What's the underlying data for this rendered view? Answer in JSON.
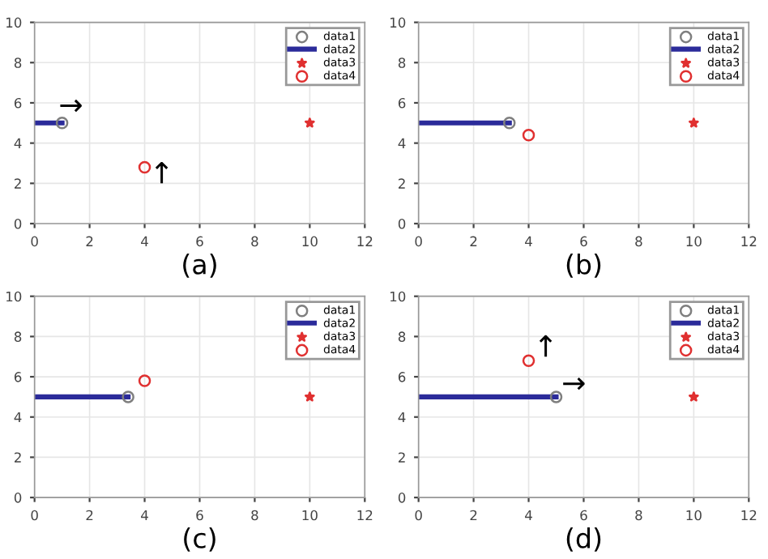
{
  "chart_data": [
    {
      "type": "line",
      "xlabel": "(a)",
      "xlim": [
        0,
        12
      ],
      "ylim": [
        0,
        10
      ],
      "xticks": [
        0,
        2,
        4,
        6,
        8,
        10,
        12
      ],
      "yticks": [
        0,
        2,
        4,
        6,
        8,
        10
      ],
      "grid": true,
      "legend": "top right",
      "annotations": [
        "→",
        "↑"
      ],
      "series": [
        {
          "name": "data1",
          "type": "scatter",
          "marker": "circle",
          "color": "#7f7f7f",
          "x": [
            1.0
          ],
          "values": [
            5
          ]
        },
        {
          "name": "data2",
          "color": "#2b2b9a",
          "x": [
            0,
            1.0
          ],
          "values": [
            5,
            5
          ]
        },
        {
          "name": "data3",
          "type": "scatter",
          "marker": "star",
          "color": "#e03030",
          "x": [
            10
          ],
          "values": [
            5
          ]
        },
        {
          "name": "data4",
          "type": "scatter",
          "marker": "circle",
          "color": "#e03030",
          "x": [
            4
          ],
          "values": [
            2.8
          ]
        }
      ]
    },
    {
      "type": "line",
      "xlabel": "(b)",
      "xlim": [
        0,
        12
      ],
      "ylim": [
        0,
        10
      ],
      "xticks": [
        0,
        2,
        4,
        6,
        8,
        10,
        12
      ],
      "yticks": [
        0,
        2,
        4,
        6,
        8,
        10
      ],
      "grid": true,
      "legend": "top right",
      "series": [
        {
          "name": "data1",
          "type": "scatter",
          "marker": "circle",
          "color": "#7f7f7f",
          "x": [
            3.3
          ],
          "values": [
            5
          ]
        },
        {
          "name": "data2",
          "color": "#2b2b9a",
          "x": [
            0,
            3.3
          ],
          "values": [
            5,
            5
          ]
        },
        {
          "name": "data3",
          "type": "scatter",
          "marker": "star",
          "color": "#e03030",
          "x": [
            10
          ],
          "values": [
            5
          ]
        },
        {
          "name": "data4",
          "type": "scatter",
          "marker": "circle",
          "color": "#e03030",
          "x": [
            4
          ],
          "values": [
            4.4
          ]
        }
      ]
    },
    {
      "type": "line",
      "xlabel": "(c)",
      "xlim": [
        0,
        12
      ],
      "ylim": [
        0,
        10
      ],
      "xticks": [
        0,
        2,
        4,
        6,
        8,
        10,
        12
      ],
      "yticks": [
        0,
        2,
        4,
        6,
        8,
        10
      ],
      "grid": true,
      "legend": "top right",
      "series": [
        {
          "name": "data1",
          "type": "scatter",
          "marker": "circle",
          "color": "#7f7f7f",
          "x": [
            3.4
          ],
          "values": [
            5
          ]
        },
        {
          "name": "data2",
          "color": "#2b2b9a",
          "x": [
            0,
            3.4
          ],
          "values": [
            5,
            5
          ]
        },
        {
          "name": "data3",
          "type": "scatter",
          "marker": "star",
          "color": "#e03030",
          "x": [
            10
          ],
          "values": [
            5
          ]
        },
        {
          "name": "data4",
          "type": "scatter",
          "marker": "circle",
          "color": "#e03030",
          "x": [
            4
          ],
          "values": [
            5.8
          ]
        }
      ]
    },
    {
      "type": "line",
      "xlabel": "(d)",
      "xlim": [
        0,
        12
      ],
      "ylim": [
        0,
        10
      ],
      "xticks": [
        0,
        2,
        4,
        6,
        8,
        10,
        12
      ],
      "yticks": [
        0,
        2,
        4,
        6,
        8,
        10
      ],
      "grid": true,
      "legend": "top right",
      "annotations": [
        "↑",
        "→"
      ],
      "series": [
        {
          "name": "data1",
          "type": "scatter",
          "marker": "circle",
          "color": "#7f7f7f",
          "x": [
            5.0
          ],
          "values": [
            5
          ]
        },
        {
          "name": "data2",
          "color": "#2b2b9a",
          "x": [
            0,
            5.0
          ],
          "values": [
            5,
            5
          ]
        },
        {
          "name": "data3",
          "type": "scatter",
          "marker": "star",
          "color": "#e03030",
          "x": [
            10
          ],
          "values": [
            5
          ]
        },
        {
          "name": "data4",
          "type": "scatter",
          "marker": "circle",
          "color": "#e03030",
          "x": [
            4
          ],
          "values": [
            6.8
          ]
        }
      ]
    }
  ]
}
